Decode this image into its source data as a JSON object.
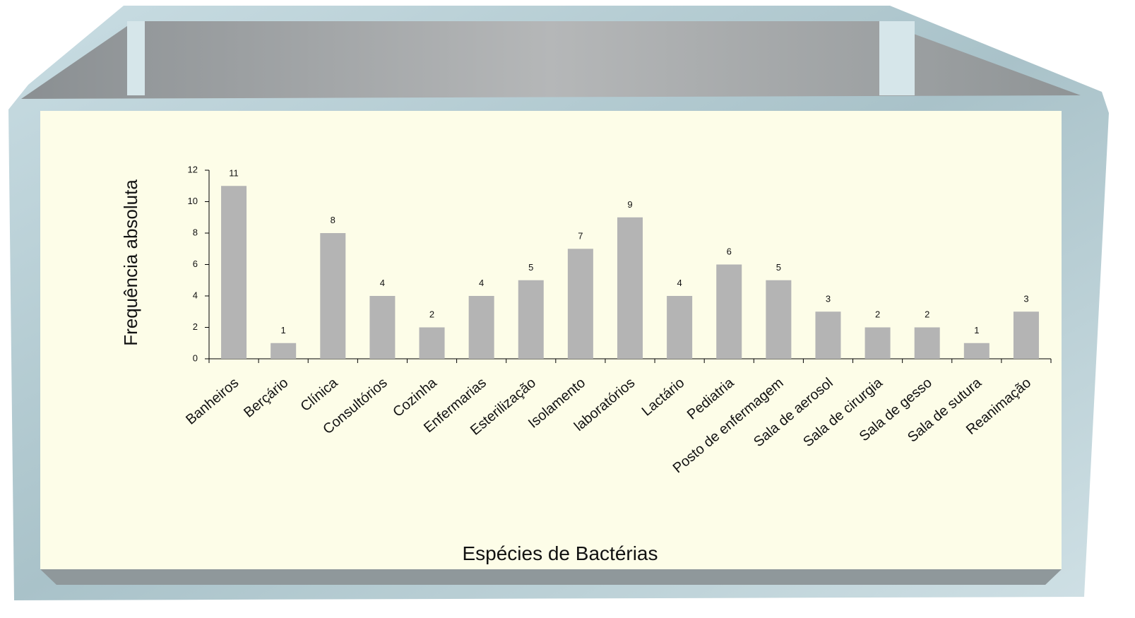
{
  "chart_data": {
    "type": "bar",
    "x_label": "Espécies de Bactérias",
    "y_label": "Frequência absoluta",
    "categories": [
      "Banheiros",
      "Berçário",
      "Clínica",
      "Consultórios",
      "Cozinha",
      "Enfermarias",
      "Esterilização",
      "Isolamento",
      "laboratórios",
      "Lactário",
      "Pediatria",
      "Posto de enfermagem",
      "Sala de aerosol",
      "Sala de cirurgia",
      "Sala de gesso",
      "Sala de sutura",
      "Reanimação"
    ],
    "values": [
      11,
      1,
      8,
      4,
      2,
      4,
      5,
      7,
      9,
      4,
      6,
      5,
      3,
      2,
      2,
      1,
      3
    ],
    "color": "#b4b4b4",
    "ylim": [
      0,
      12
    ],
    "yticks": [
      0,
      2,
      4,
      6,
      8,
      10,
      12
    ],
    "value_labels_shown": true
  }
}
